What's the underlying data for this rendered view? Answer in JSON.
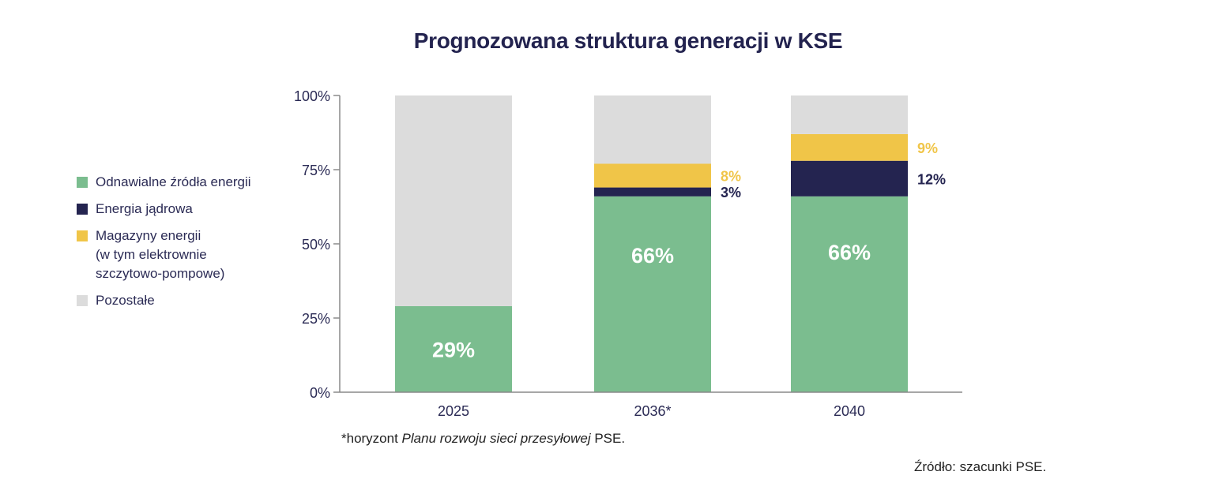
{
  "title": "Prognozowana struktura generacji w KSE",
  "legend": [
    {
      "label": "Odnawialne źródła energii",
      "color": "#7bbd8f"
    },
    {
      "label": "Energia jądrowa",
      "color": "#242450"
    },
    {
      "label": "Magazyny energii\n(w tym elektrownie\nszczytowo-pompowe)",
      "color": "#f0c548"
    },
    {
      "label": "Pozostałe",
      "color": "#dcdcdc"
    }
  ],
  "chart_data": {
    "type": "bar",
    "stacked": true,
    "title": "Prognozowana struktura generacji w KSE",
    "categories": [
      "2025",
      "2036*",
      "2040"
    ],
    "series": [
      {
        "name": "Odnawialne źródła energii",
        "values": [
          29,
          66,
          66
        ],
        "color": "#7bbd8f",
        "labels": [
          "29%",
          "66%",
          "66%"
        ]
      },
      {
        "name": "Energia jądrowa",
        "values": [
          0,
          3,
          12
        ],
        "color": "#242450",
        "labels": [
          "",
          "3%",
          "12%"
        ]
      },
      {
        "name": "Magazyny energii (w tym elektrownie szczytowo-pompowe)",
        "values": [
          0,
          8,
          9
        ],
        "color": "#f0c548",
        "labels": [
          "",
          "8%",
          "9%"
        ]
      },
      {
        "name": "Pozostałe",
        "values": [
          71,
          23,
          13
        ],
        "color": "#dcdcdc",
        "labels": [
          "",
          "",
          ""
        ]
      }
    ],
    "ylim": [
      0,
      100
    ],
    "yticks": [
      "0%",
      "25%",
      "50%",
      "75%",
      "100%"
    ],
    "ytick_values": [
      0,
      25,
      50,
      75,
      100
    ],
    "xlabel": "",
    "ylabel": "",
    "grid": false,
    "legend_position": "left"
  },
  "footnote": {
    "prefix": "*horyzont ",
    "italic": "Planu rozwoju sieci przesyłowej",
    "suffix": " PSE."
  },
  "source": "Źródło: szacunki PSE."
}
